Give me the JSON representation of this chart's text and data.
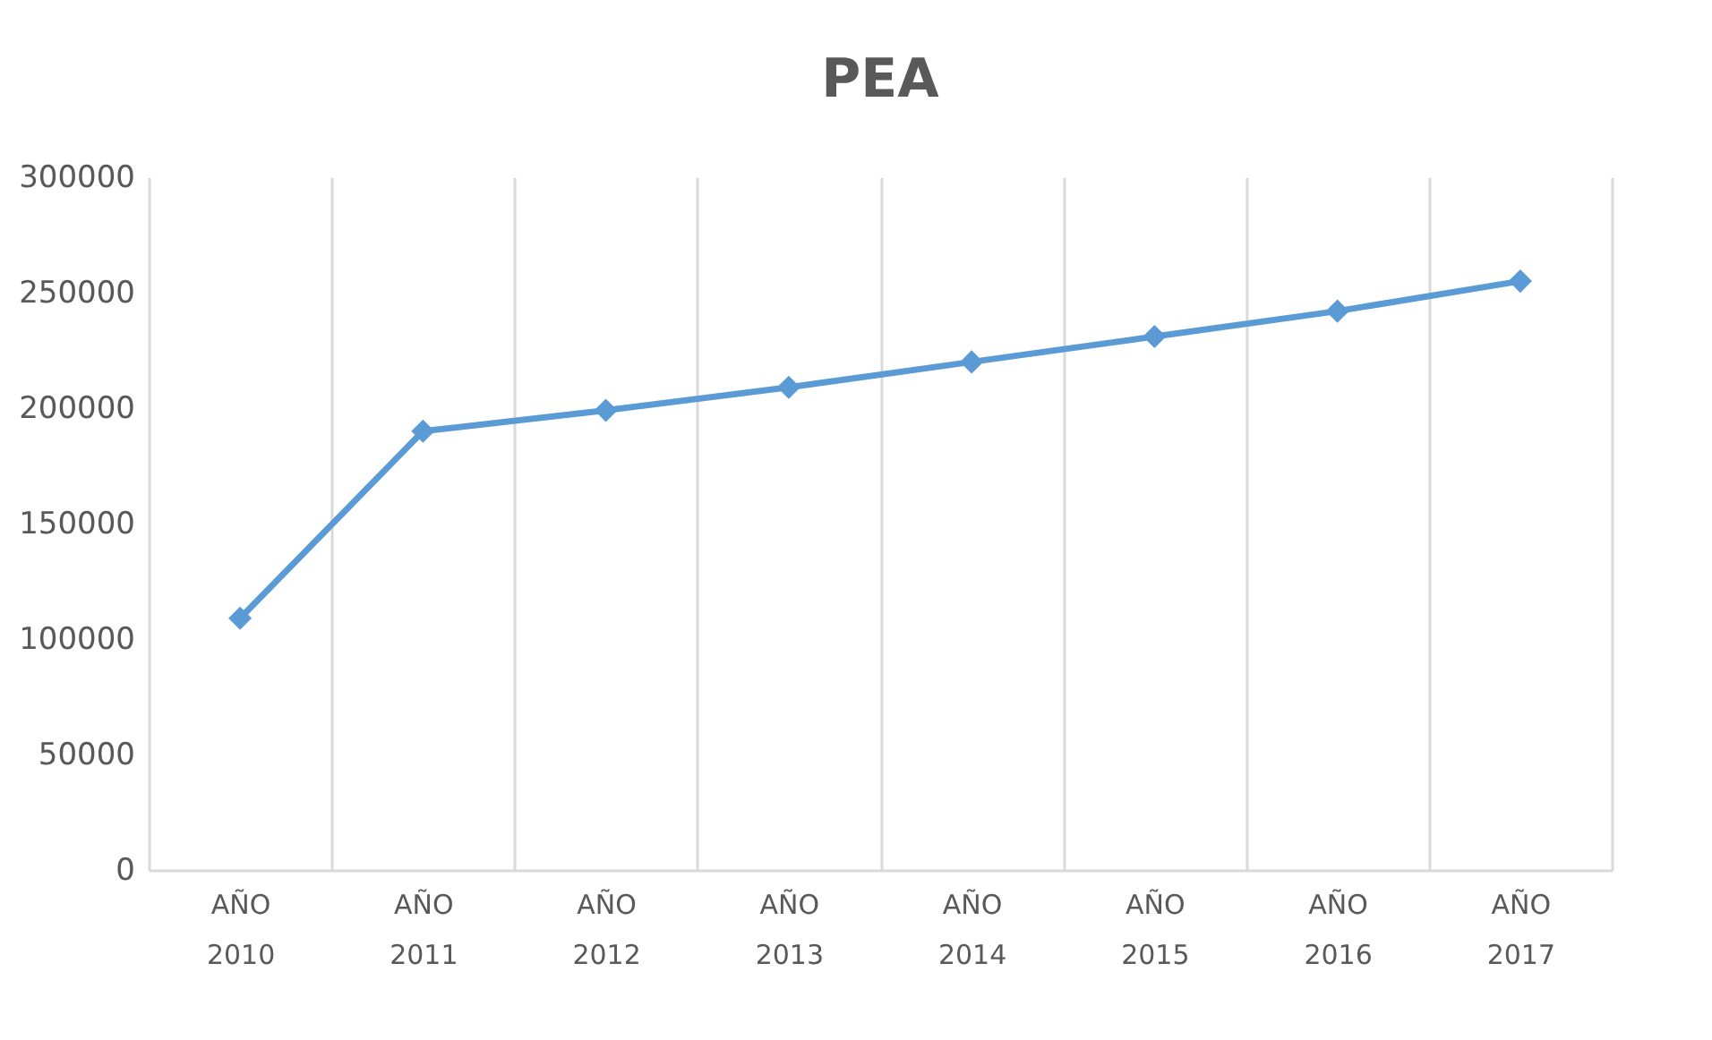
{
  "chart_data": {
    "type": "line",
    "title": "PEA",
    "categories": [
      "AÑO 2010",
      "AÑO 2011",
      "AÑO 2012",
      "AÑO 2013",
      "AÑO 2014",
      "AÑO 2015",
      "AÑO 2016",
      "AÑO 2017"
    ],
    "series": [
      {
        "color": "#5b9bd5",
        "values": [
          109000,
          190000,
          199000,
          209000,
          220000,
          231000,
          242000,
          255000
        ]
      }
    ],
    "ylim": [
      0,
      300000
    ],
    "yticks": [
      0,
      50000,
      100000,
      150000,
      200000,
      250000,
      300000
    ],
    "grid": "x",
    "legend": false,
    "marker": "diamond",
    "line_style": "solid"
  }
}
